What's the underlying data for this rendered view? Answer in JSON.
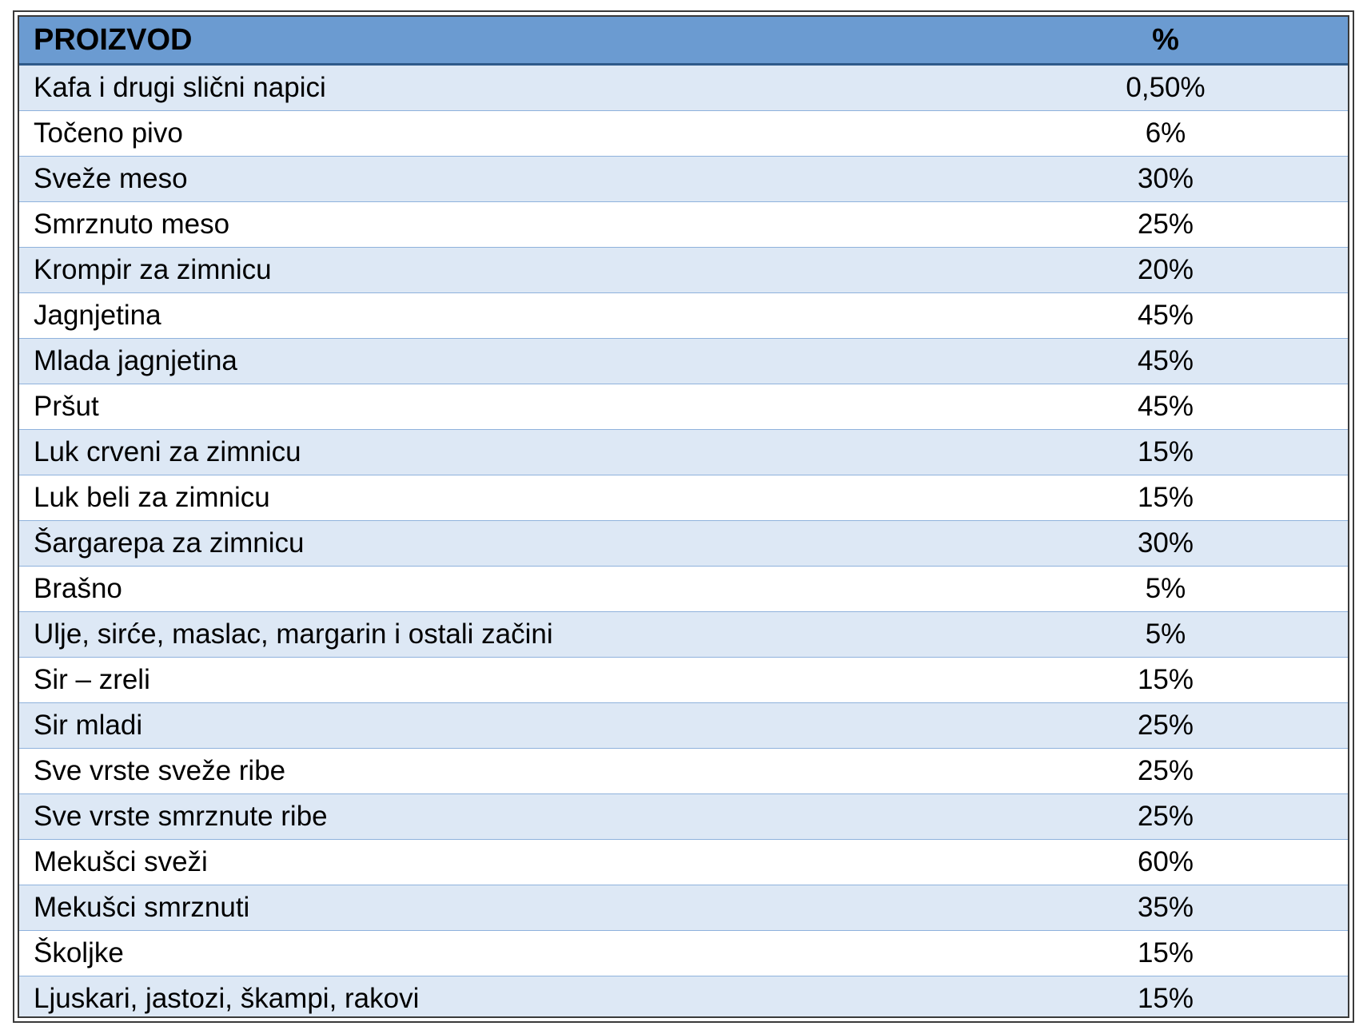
{
  "table": {
    "headers": {
      "product": "PROIZVOD",
      "percent": "%"
    },
    "rows": [
      {
        "product": "Kafa i drugi slični napici",
        "percent": "0,50%"
      },
      {
        "product": "Točeno pivo",
        "percent": "6%"
      },
      {
        "product": "Sveže meso",
        "percent": "30%"
      },
      {
        "product": "Smrznuto meso",
        "percent": "25%"
      },
      {
        "product": "Krompir za zimnicu",
        "percent": "20%"
      },
      {
        "product": "Jagnjetina",
        "percent": "45%"
      },
      {
        "product": "Mlada jagnjetina",
        "percent": "45%"
      },
      {
        "product": "Pršut",
        "percent": "45%"
      },
      {
        "product": "Luk crveni za zimnicu",
        "percent": "15%"
      },
      {
        "product": "Luk beli za zimnicu",
        "percent": "15%"
      },
      {
        "product": "Šargarepa za zimnicu",
        "percent": "30%"
      },
      {
        "product": "Brašno",
        "percent": "5%"
      },
      {
        "product": "Ulje, sirće, maslac, margarin i ostali začini",
        "percent": "5%"
      },
      {
        "product": "Sir – zreli",
        "percent": "15%"
      },
      {
        "product": "Sir mladi",
        "percent": "25%"
      },
      {
        "product": "Sve vrste sveže ribe",
        "percent": "25%"
      },
      {
        "product": "Sve vrste smrznute ribe",
        "percent": "25%"
      },
      {
        "product": "Mekušci sveži",
        "percent": "60%"
      },
      {
        "product": "Mekušci smrznuti",
        "percent": "35%"
      },
      {
        "product": "Školjke",
        "percent": "15%"
      },
      {
        "product": "Ljuskari, jastozi, škampi, rakovi",
        "percent": "15%"
      }
    ]
  },
  "colors": {
    "header_bg": "#6b9bd1",
    "row_alt_bg": "#dde8f5",
    "row_bg": "#ffffff",
    "row_divider": "#8fb2dc",
    "frame": "#3a3a3a"
  }
}
